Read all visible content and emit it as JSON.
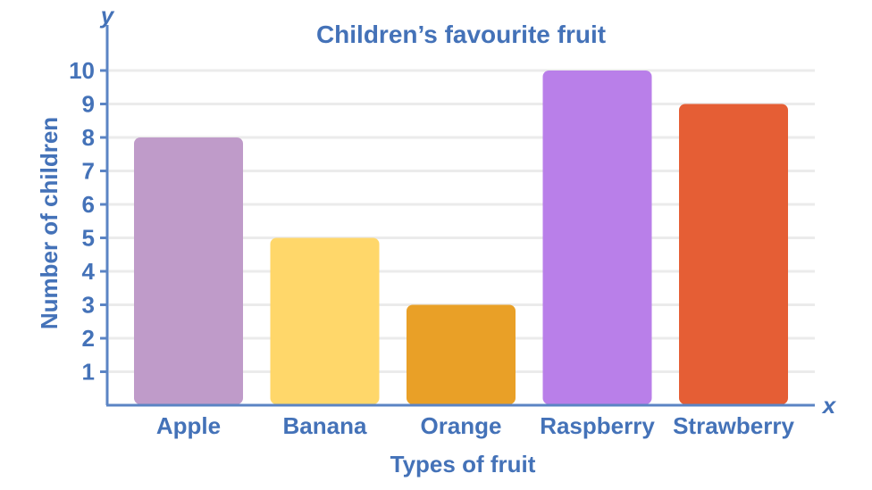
{
  "chart_data": {
    "type": "bar",
    "title": "Children’s favourite fruit",
    "xlabel": "Types of fruit",
    "ylabel": "Number of children",
    "x_axis_letter": "x",
    "y_axis_letter": "y",
    "categories": [
      "Apple",
      "Banana",
      "Orange",
      "Raspberry",
      "Strawberry"
    ],
    "values": [
      8,
      5,
      3,
      10,
      9
    ],
    "bar_colors": [
      "#BF9BC9",
      "#FFD76A",
      "#E9A027",
      "#B97FE9",
      "#E55E35"
    ],
    "ylim": [
      0,
      10
    ],
    "yticks": [
      "1",
      "2",
      "3",
      "4",
      "5",
      "6",
      "7",
      "8",
      "9",
      "10"
    ],
    "grid": true,
    "colors": {
      "text": "#4472B8",
      "axis": "#5B84C4",
      "grid": "#EBEBEB"
    }
  }
}
